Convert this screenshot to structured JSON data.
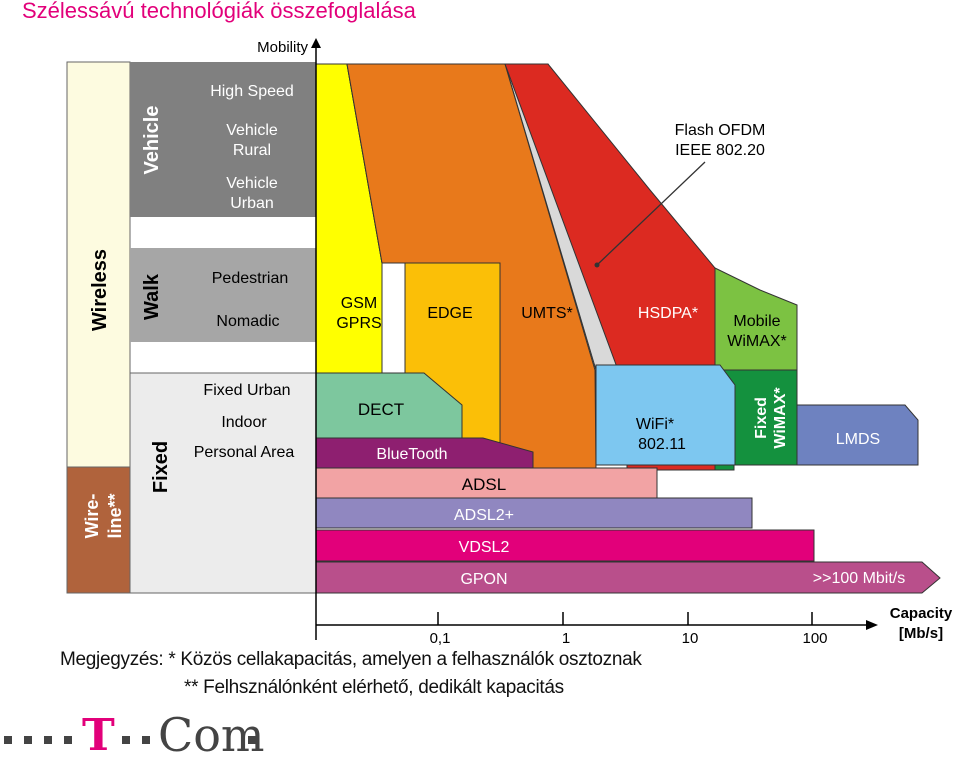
{
  "title": "Szélessávú  technológiák  összefoglalása",
  "axes": {
    "y_label": "Mobility",
    "x_label_line1": "Capacity",
    "x_label_line2": "[Mb/s]",
    "x_ticks": [
      "0,1",
      "1",
      "10",
      "100"
    ]
  },
  "mobility": {
    "wireless": "Wireless",
    "wireline_line1": "Wire-",
    "wireline_line2": "line**",
    "vehicle": "Vehicle",
    "walk": "Walk",
    "fixed": "Fixed",
    "vehicle_items": [
      "High Speed",
      "Vehicle",
      "Rural",
      "Vehicle",
      "Urban"
    ],
    "walk_items": [
      "Pedestrian",
      "Nomadic"
    ],
    "fixed_items": [
      "Fixed Urban",
      "Indoor",
      "Personal Area"
    ]
  },
  "technologies": {
    "gsm": "GSM",
    "gprs": "GPRS",
    "edge": "EDGE",
    "umts": "UMTS*",
    "hsdpa": "HSDPA*",
    "flash1": "Flash OFDM",
    "flash2": "IEEE 802.20",
    "mobile1": "Mobile",
    "mobile2": "WiMAX*",
    "dect": "DECT",
    "bluetooth": "BlueTooth",
    "wifi1": "WiFi*",
    "wifi2": "802.11",
    "fixedwimax1": "Fixed",
    "fixedwimax2": "WiMAX*",
    "lmds": "LMDS",
    "adsl": "ADSL",
    "adsl2": "ADSL2+",
    "vdsl2": "VDSL2",
    "gpon": "GPON",
    "gpon_cap": ">>100 Mbit/s"
  },
  "notes": {
    "line1": "Megjegyzés: * Közös cellakapacitás, amelyen a felhasználók osztoznak",
    "line2": "** Felhsználónként elérhető, dedikált kapacitás"
  },
  "logo": {
    "t": "T",
    "com": "Com",
    "brand_color": "#e2007a"
  },
  "colors": {
    "gsm": "#ffff00",
    "edge": "#fbbf07",
    "umts": "#e8791b",
    "hsdpa": "#dc2a21",
    "mobile_wimax": "#7cc242",
    "fixed_wimax": "#14913e",
    "wifi": "#7dc7f0",
    "lmds": "#6e82c0",
    "dect": "#7dc79e",
    "bluetooth": "#8e1f70",
    "adsl": "#f2a3a4",
    "adsl2": "#9087c0",
    "vdsl2": "#e2007a",
    "gpon": "#b94f8b",
    "wireless": "#fdfbe0",
    "wireline": "#b0633c",
    "gray": "#808080",
    "lightgray": "#a6a6a6"
  }
}
